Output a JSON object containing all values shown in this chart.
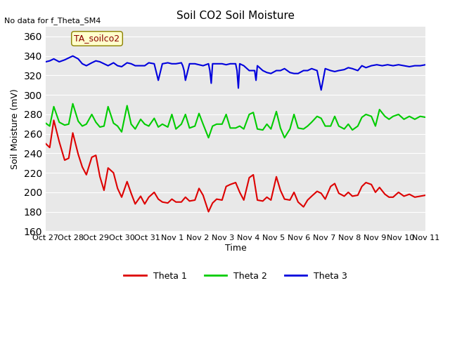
{
  "title": "Soil CO2 Soil Moisture",
  "ylabel": "Soil Moisture (mV)",
  "xlabel": "Time",
  "no_data_text": "No data for f_Theta_SM4",
  "annotation_text": "TA_soilco2",
  "ylim": [
    160,
    370
  ],
  "yticks": [
    160,
    180,
    200,
    220,
    240,
    260,
    280,
    300,
    320,
    340,
    360
  ],
  "xtick_labels": [
    "Oct 27",
    "Oct 28",
    "Oct 29",
    "Oct 30",
    "Oct 31",
    "Nov 1",
    "Nov 2",
    "Nov 3",
    "Nov 4",
    "Nov 5",
    "Nov 6",
    "Nov 7",
    "Nov 8",
    "Nov 9",
    "Nov 10",
    "Nov 11"
  ],
  "background_color": "#e8e8e8",
  "legend_entries": [
    "Theta 1",
    "Theta 2",
    "Theta 3"
  ],
  "legend_colors": [
    "#dd0000",
    "#00cc00",
    "#0000dd"
  ],
  "theta1_x": [
    0,
    0.15,
    0.3,
    0.5,
    0.7,
    0.85,
    1.0,
    1.2,
    1.35,
    1.5,
    1.7,
    1.85,
    2.0,
    2.15,
    2.3,
    2.5,
    2.65,
    2.8,
    3.0,
    3.15,
    3.3,
    3.5,
    3.65,
    3.8,
    4.0,
    4.15,
    4.3,
    4.5,
    4.65,
    4.8,
    5.0,
    5.15,
    5.3,
    5.5,
    5.65,
    5.8,
    6.0,
    6.15,
    6.3,
    6.5,
    6.65,
    6.8,
    7.0,
    7.15,
    7.3,
    7.5,
    7.65,
    7.8,
    8.0,
    8.15,
    8.3,
    8.5,
    8.65,
    8.8,
    9.0,
    9.15,
    9.3,
    9.5,
    9.65,
    9.8,
    10.0,
    10.15,
    10.3,
    10.5,
    10.65,
    10.8,
    11.0,
    11.15,
    11.3,
    11.5,
    11.65,
    11.8,
    12.0,
    12.15,
    12.3,
    12.5,
    12.65,
    12.8,
    13.0,
    13.2,
    13.4,
    13.6,
    13.8,
    14.0
  ],
  "theta1_y": [
    250,
    246,
    274,
    252,
    233,
    235,
    261,
    239,
    226,
    218,
    236,
    238,
    216,
    202,
    225,
    220,
    204,
    195,
    211,
    199,
    188,
    196,
    188,
    195,
    200,
    193,
    190,
    189,
    193,
    190,
    190,
    195,
    191,
    192,
    204,
    197,
    180,
    189,
    193,
    192,
    206,
    208,
    210,
    200,
    192,
    215,
    218,
    192,
    191,
    195,
    192,
    216,
    202,
    193,
    192,
    200,
    190,
    185,
    192,
    196,
    201,
    199,
    193,
    206,
    209,
    199,
    196,
    200,
    196,
    197,
    206,
    210,
    208,
    200,
    205,
    198,
    195,
    195,
    200,
    196,
    198,
    195,
    196,
    197
  ],
  "theta2_x": [
    0,
    0.15,
    0.3,
    0.5,
    0.7,
    0.85,
    1.0,
    1.2,
    1.35,
    1.5,
    1.7,
    1.85,
    2.0,
    2.15,
    2.3,
    2.5,
    2.65,
    2.8,
    3.0,
    3.15,
    3.3,
    3.5,
    3.65,
    3.8,
    4.0,
    4.15,
    4.3,
    4.5,
    4.65,
    4.8,
    5.0,
    5.15,
    5.3,
    5.5,
    5.65,
    5.8,
    6.0,
    6.15,
    6.3,
    6.5,
    6.65,
    6.8,
    7.0,
    7.15,
    7.3,
    7.5,
    7.65,
    7.8,
    8.0,
    8.15,
    8.3,
    8.5,
    8.65,
    8.8,
    9.0,
    9.15,
    9.3,
    9.5,
    9.65,
    9.8,
    10.0,
    10.15,
    10.3,
    10.5,
    10.65,
    10.8,
    11.0,
    11.15,
    11.3,
    11.5,
    11.65,
    11.8,
    12.0,
    12.15,
    12.3,
    12.5,
    12.65,
    12.8,
    13.0,
    13.2,
    13.4,
    13.6,
    13.8,
    14.0
  ],
  "theta2_y": [
    271,
    268,
    288,
    272,
    269,
    270,
    291,
    273,
    268,
    270,
    280,
    272,
    267,
    268,
    288,
    271,
    268,
    262,
    289,
    270,
    265,
    275,
    270,
    268,
    276,
    267,
    270,
    267,
    280,
    265,
    270,
    280,
    266,
    268,
    281,
    270,
    256,
    268,
    270,
    270,
    280,
    266,
    266,
    268,
    265,
    280,
    282,
    265,
    264,
    270,
    265,
    283,
    266,
    256,
    265,
    280,
    266,
    265,
    268,
    272,
    278,
    276,
    268,
    268,
    278,
    268,
    265,
    270,
    264,
    268,
    277,
    280,
    278,
    268,
    285,
    278,
    275,
    278,
    280,
    275,
    278,
    275,
    278,
    277
  ],
  "theta3_x": [
    0,
    0.15,
    0.3,
    0.5,
    0.7,
    0.85,
    1.0,
    1.2,
    1.35,
    1.5,
    1.7,
    1.85,
    2.0,
    2.15,
    2.3,
    2.5,
    2.65,
    2.8,
    3.0,
    3.15,
    3.3,
    3.5,
    3.65,
    3.8,
    4.0,
    4.15,
    4.3,
    4.5,
    4.65,
    4.8,
    5.0,
    5.05,
    5.1,
    5.15,
    5.3,
    5.5,
    5.65,
    5.8,
    6.0,
    6.05,
    6.1,
    6.15,
    6.3,
    6.5,
    6.65,
    6.8,
    7.0,
    7.05,
    7.1,
    7.15,
    7.3,
    7.5,
    7.65,
    7.7,
    7.75,
    7.8,
    8.0,
    8.15,
    8.3,
    8.5,
    8.65,
    8.8,
    9.0,
    9.15,
    9.3,
    9.5,
    9.65,
    9.8,
    10.0,
    10.15,
    10.3,
    10.5,
    10.65,
    10.8,
    11.0,
    11.15,
    11.3,
    11.5,
    11.65,
    11.8,
    12.0,
    12.2,
    12.4,
    12.6,
    12.8,
    13.0,
    13.2,
    13.4,
    13.6,
    13.8,
    14.0
  ],
  "theta3_y": [
    334,
    335,
    337,
    334,
    336,
    338,
    340,
    337,
    332,
    330,
    333,
    335,
    334,
    332,
    330,
    333,
    330,
    329,
    333,
    332,
    330,
    330,
    330,
    333,
    332,
    315,
    332,
    333,
    332,
    332,
    333,
    330,
    325,
    315,
    332,
    332,
    331,
    330,
    332,
    325,
    312,
    332,
    332,
    332,
    331,
    332,
    332,
    325,
    307,
    332,
    330,
    325,
    325,
    325,
    315,
    330,
    325,
    323,
    322,
    325,
    325,
    327,
    323,
    322,
    322,
    325,
    325,
    327,
    325,
    305,
    327,
    325,
    324,
    325,
    326,
    328,
    327,
    325,
    330,
    328,
    330,
    331,
    330,
    331,
    330,
    331,
    330,
    329,
    330,
    330,
    331
  ]
}
